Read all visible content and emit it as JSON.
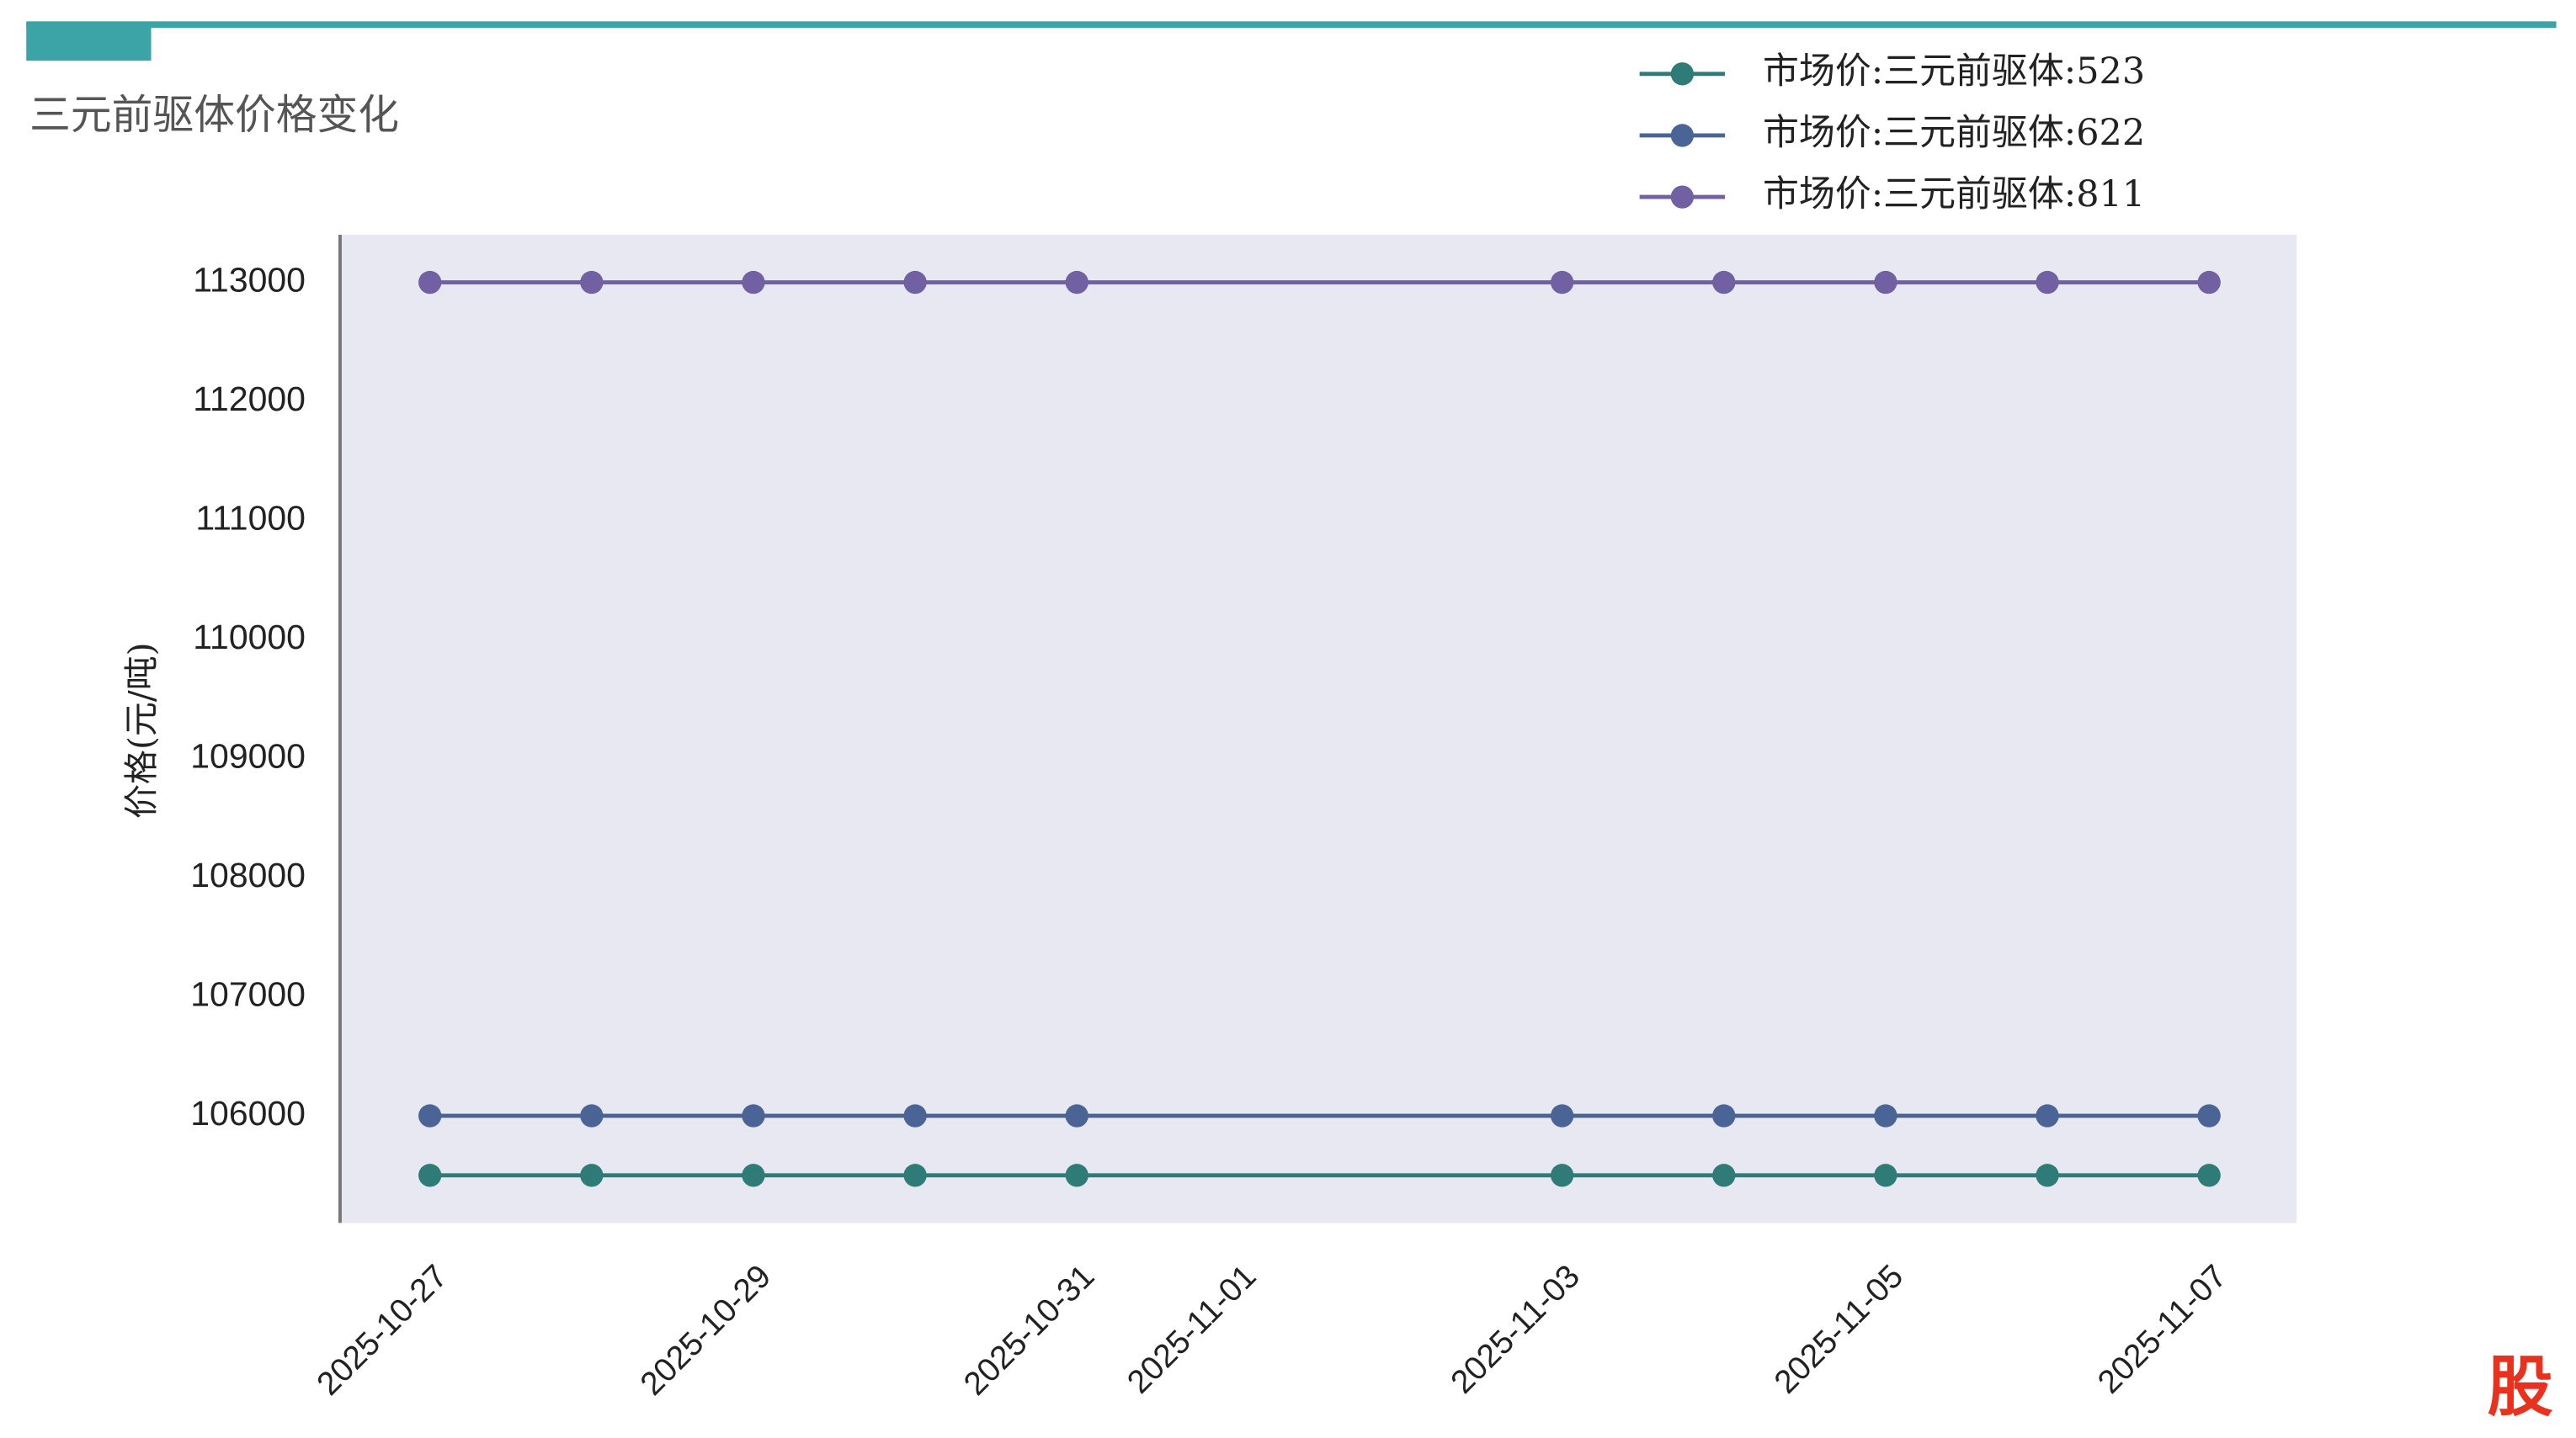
{
  "chart_data": {
    "type": "line",
    "title": "三元前驱体价格变化",
    "y_label": "价格(元/吨)",
    "watermark": "股",
    "x": [
      "2025-10-27",
      "2025-10-28",
      "2025-10-29",
      "2025-10-30",
      "2025-10-31",
      "2025-11-03",
      "2025-11-04",
      "2025-11-05",
      "2025-11-06",
      "2025-11-07"
    ],
    "xlim": [
      "2025-10-26T10:40",
      "2025-11-07T13:00"
    ],
    "xticks": [
      "2025-10-27",
      "2025-10-29",
      "2025-10-31",
      "2025-11-01",
      "2025-11-03",
      "2025-11-05",
      "2025-11-07"
    ],
    "ylim": [
      105100,
      113400
    ],
    "yticks": [
      106000,
      107000,
      108000,
      109000,
      110000,
      111000,
      112000,
      113000
    ],
    "legend": "upper right",
    "series": [
      {
        "name": "市场价:三元前驱体:523",
        "color": "#2e7b78",
        "values": [
          105500,
          105500,
          105500,
          105500,
          105500,
          105500,
          105500,
          105500,
          105500,
          105500
        ]
      },
      {
        "name": "市场价:三元前驱体:622",
        "color": "#4a6595",
        "values": [
          106000,
          106000,
          106000,
          106000,
          106000,
          106000,
          106000,
          106000,
          106000,
          106000
        ]
      },
      {
        "name": "市场价:三元前驱体:811",
        "color": "#7160a2",
        "values": [
          113000,
          113000,
          113000,
          113000,
          113000,
          113000,
          113000,
          113000,
          113000,
          113000
        ]
      }
    ]
  }
}
